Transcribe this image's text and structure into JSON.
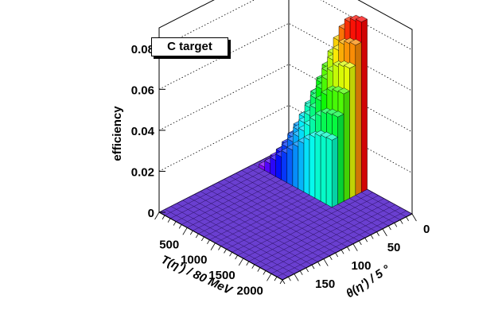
{
  "chart_data": {
    "type": "lego3d",
    "title": "C target",
    "zlabel": "efficiency",
    "xlabel": "T(η') / 80 MeV",
    "ylabel": "θ(η') / 5 °",
    "xlim": [
      0,
      2200
    ],
    "ylim": [
      0,
      180
    ],
    "zlim": [
      0,
      0.09
    ],
    "zticks": [
      0,
      0.02,
      0.04,
      0.06,
      0.08
    ],
    "ztick_labels": [
      "0",
      "0.02",
      "0.04",
      "0.06",
      "0.08"
    ],
    "xticks": [
      500,
      1000,
      1500,
      2000
    ],
    "xtick_labels": [
      "500",
      "1000",
      "1500",
      "2000"
    ],
    "yticks": [
      0,
      50,
      100,
      150
    ],
    "ytick_labels": [
      "0",
      "50",
      "100",
      "150"
    ],
    "bins": 22,
    "grid": true,
    "color_scale": "rainbow (violet=low, red=high)",
    "x_centers": [
      50,
      150,
      250,
      350,
      450,
      550,
      650,
      750,
      850,
      950,
      1050,
      1150,
      1250,
      1350,
      1450,
      1550,
      1650,
      1750,
      1850,
      1950,
      2050,
      2150
    ],
    "theta_centers_deg": [
      4,
      12,
      20,
      29,
      37,
      45,
      53,
      61,
      69,
      78,
      86,
      94,
      102,
      110,
      118,
      127,
      135,
      143,
      151,
      159,
      167,
      176
    ],
    "nonzero_region": "T(η') <= 1400 MeV, θ(η') <= 45 deg; zero elsewhere",
    "efficiency_by_T_at_lowest_theta": [
      0.0,
      0.004,
      0.012,
      0.02,
      0.028,
      0.036,
      0.044,
      0.052,
      0.06,
      0.068,
      0.075,
      0.08,
      0.082,
      0.083,
      0.0,
      0.0,
      0.0,
      0.0,
      0.0,
      0.0,
      0.0,
      0.0
    ],
    "peak_efficiency": 0.083
  }
}
